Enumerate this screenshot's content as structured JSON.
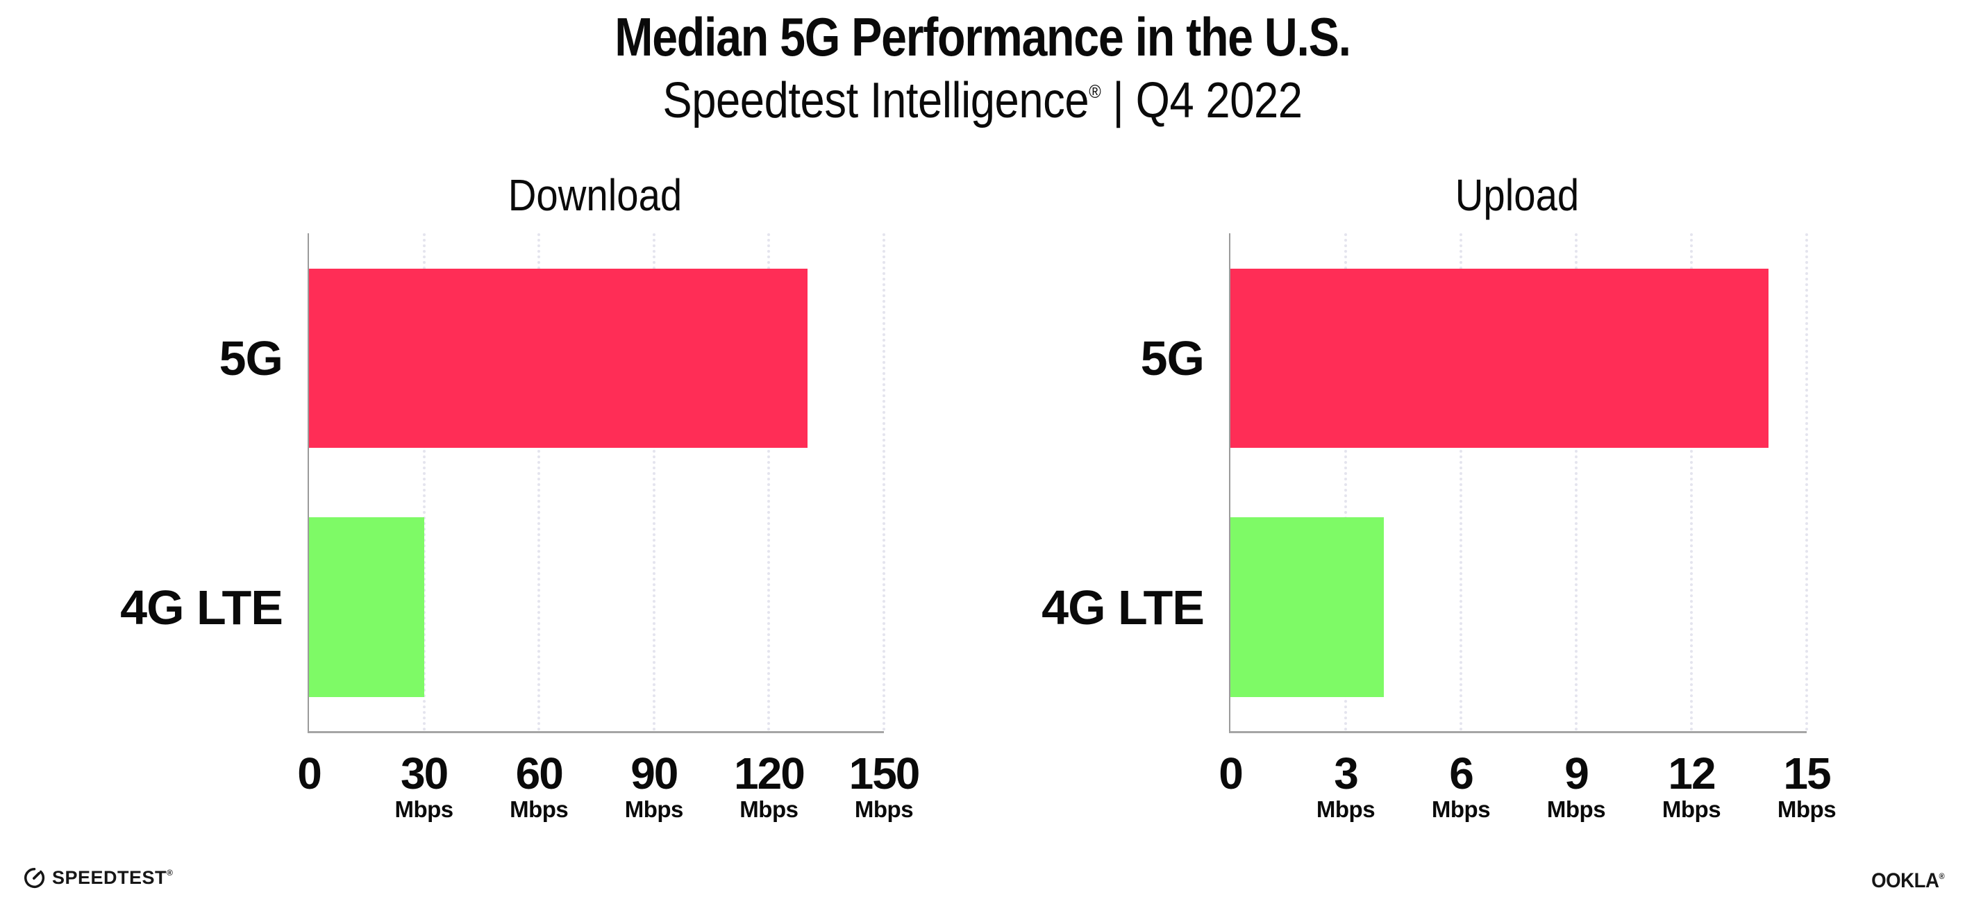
{
  "header": {
    "title": "Median 5G Performance in the U.S.",
    "subtitle_brand": "Speedtest Intelligence",
    "subtitle_reg": "®",
    "subtitle_rest": " | Q4 2022"
  },
  "colors": {
    "bar_5g": "#FF2D56",
    "bar_4g_lte": "#7EFA66",
    "axis": "#9B9B9B",
    "gridline": "#E4E4EE"
  },
  "chart_data": [
    {
      "type": "bar",
      "orientation": "horizontal",
      "title": "Download",
      "categories": [
        "5G",
        "4G LTE"
      ],
      "values": [
        130,
        30
      ],
      "value_unit": "Mbps",
      "xlim": [
        0,
        150
      ],
      "xticks": [
        0,
        30,
        60,
        90,
        120,
        150
      ],
      "xtick_unit": "Mbps",
      "bar_colors": [
        "#FF2D56",
        "#7EFA66"
      ],
      "grid": "vertical-dotted",
      "legend": "none"
    },
    {
      "type": "bar",
      "orientation": "horizontal",
      "title": "Upload",
      "categories": [
        "5G",
        "4G LTE"
      ],
      "values": [
        14,
        4
      ],
      "value_unit": "Mbps",
      "xlim": [
        0,
        15
      ],
      "xticks": [
        0,
        3,
        6,
        9,
        12,
        15
      ],
      "xtick_unit": "Mbps",
      "bar_colors": [
        "#FF2D56",
        "#7EFA66"
      ],
      "grid": "vertical-dotted",
      "legend": "none"
    }
  ],
  "footer": {
    "speedtest_logo_text": "SPEEDTEST",
    "speedtest_mark": "®",
    "ookla_logo_text": "OOKLA",
    "ookla_mark": "®"
  }
}
